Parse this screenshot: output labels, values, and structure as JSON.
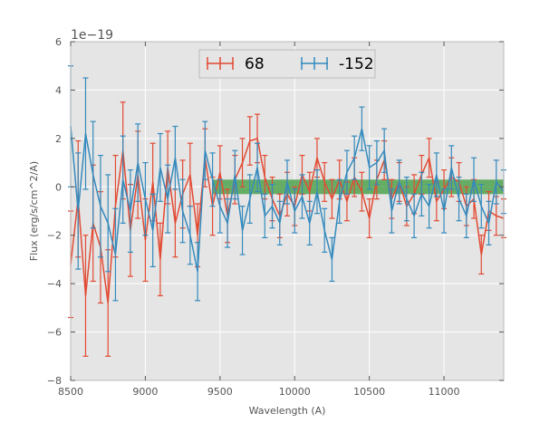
{
  "chart_data": {
    "type": "line",
    "xlabel": "Wavelength (A)",
    "ylabel": "Flux (erg/s/cm^2/A)",
    "offset_label": "1e−19",
    "xlim": [
      8500,
      11400
    ],
    "ylim": [
      -8,
      6
    ],
    "y_scale_factor": "1e-19",
    "x_ticks": [
      8500,
      9000,
      9500,
      10000,
      10500,
      11000
    ],
    "y_ticks": [
      -8,
      -6,
      -4,
      -2,
      0,
      2,
      4,
      6
    ],
    "x_tick_labels": [
      "8500",
      "9000",
      "9500",
      "10000",
      "10500",
      "11000"
    ],
    "y_tick_labels": [
      "−8",
      "−6",
      "−4",
      "−2",
      "0",
      "2",
      "4",
      "6"
    ],
    "grid": true,
    "legend_placement": "top-center",
    "colors": {
      "s68": "#e24a33",
      "s152": "#348abd",
      "band": "#3a9a3a",
      "plot_bg": "#e5e5e5"
    },
    "band": {
      "x0": 9450,
      "x1": 11400,
      "y0": -0.3,
      "y1": 0.3
    },
    "series": [
      {
        "name": "68",
        "x": [
          8500,
          8550,
          8600,
          8650,
          8700,
          8750,
          8800,
          8850,
          8900,
          8950,
          9000,
          9050,
          9100,
          9150,
          9200,
          9250,
          9300,
          9350,
          9400,
          9450,
          9500,
          9550,
          9600,
          9650,
          9700,
          9750,
          9800,
          9850,
          9900,
          9950,
          10000,
          10050,
          10100,
          10150,
          10200,
          10250,
          10300,
          10350,
          10400,
          10450,
          10500,
          10550,
          10600,
          10650,
          10700,
          10750,
          10800,
          10850,
          10900,
          10950,
          11000,
          11050,
          11100,
          11150,
          11200,
          11250,
          11300,
          11350,
          11400
        ],
        "y": [
          -3.2,
          -0.5,
          -4.5,
          -1.5,
          -2.5,
          -4.8,
          -0.8,
          1.5,
          -1.8,
          0.5,
          -2.2,
          0.2,
          -3.0,
          0.8,
          -1.5,
          -0.3,
          0.5,
          -2.0,
          1.2,
          -0.8,
          0.6,
          -1.2,
          0.3,
          1.0,
          1.9,
          2.0,
          0.4,
          -0.5,
          -1.2,
          -0.3,
          -0.8,
          0.5,
          -0.2,
          1.2,
          0.2,
          -0.5,
          0.3,
          -0.6,
          0.4,
          -0.2,
          -1.3,
          0.3,
          1.1,
          -0.5,
          0.2,
          -0.8,
          -0.3,
          0.5,
          1.2,
          -0.6,
          -0.1,
          0.4,
          0.2,
          -0.8,
          -0.5,
          -2.8,
          -1.0,
          -1.2,
          -1.3
        ],
        "yerr": [
          2.2,
          2.4,
          2.5,
          2.4,
          2.3,
          2.2,
          2.1,
          2.0,
          1.9,
          1.8,
          1.7,
          1.6,
          1.5,
          1.5,
          1.4,
          1.4,
          1.3,
          1.3,
          1.2,
          1.2,
          1.1,
          1.1,
          1.0,
          1.0,
          1.0,
          1.0,
          0.9,
          0.9,
          0.9,
          0.9,
          0.8,
          0.8,
          0.8,
          0.8,
          0.8,
          0.8,
          0.8,
          0.8,
          0.8,
          0.8,
          0.8,
          0.8,
          0.8,
          0.8,
          0.8,
          0.8,
          0.8,
          0.8,
          0.8,
          0.8,
          0.8,
          0.8,
          0.8,
          0.8,
          0.8,
          0.8,
          0.8,
          0.8,
          0.8
        ]
      },
      {
        "name": "-152",
        "x": [
          8500,
          8550,
          8600,
          8650,
          8700,
          8750,
          8800,
          8850,
          8900,
          8950,
          9000,
          9050,
          9100,
          9150,
          9200,
          9250,
          9300,
          9350,
          9400,
          9450,
          9500,
          9550,
          9600,
          9650,
          9700,
          9750,
          9800,
          9850,
          9900,
          9950,
          10000,
          10050,
          10100,
          10150,
          10200,
          10250,
          10300,
          10350,
          10400,
          10450,
          10500,
          10550,
          10600,
          10650,
          10700,
          10750,
          10800,
          10850,
          10900,
          10950,
          11000,
          11050,
          11100,
          11150,
          11200,
          11250,
          11300,
          11350,
          11400
        ],
        "y": [
          2.5,
          -1.0,
          2.2,
          0.5,
          -0.8,
          -1.5,
          -2.8,
          0.3,
          -1.0,
          1.0,
          -0.5,
          -1.8,
          0.8,
          -0.5,
          1.2,
          -1.0,
          -2.0,
          -3.5,
          1.5,
          0.3,
          -0.8,
          -1.5,
          0.5,
          -1.8,
          -0.5,
          0.8,
          -1.2,
          -0.8,
          -1.5,
          0.2,
          -1.0,
          -0.4,
          -1.5,
          -0.2,
          -1.8,
          -3.0,
          -0.6,
          0.6,
          1.2,
          2.4,
          0.8,
          1.0,
          1.5,
          -1.0,
          0.2,
          -0.5,
          -1.2,
          -0.3,
          -0.8,
          0.5,
          -1.0,
          0.8,
          -0.5,
          -1.2,
          0.3,
          -0.8,
          -1.5,
          0.2,
          -0.2
        ],
        "yerr": [
          2.5,
          2.4,
          2.3,
          2.2,
          2.1,
          2.0,
          1.9,
          1.8,
          1.7,
          1.6,
          1.5,
          1.5,
          1.4,
          1.4,
          1.3,
          1.3,
          1.2,
          1.2,
          1.2,
          1.1,
          1.1,
          1.0,
          1.0,
          1.0,
          1.0,
          1.0,
          0.9,
          0.9,
          0.9,
          0.9,
          0.9,
          0.9,
          0.9,
          0.9,
          0.9,
          0.9,
          0.9,
          0.9,
          0.9,
          0.9,
          0.9,
          0.9,
          0.9,
          0.9,
          0.9,
          0.9,
          0.9,
          0.9,
          0.9,
          0.9,
          0.9,
          0.9,
          0.9,
          0.9,
          0.9,
          0.9,
          0.9,
          0.9,
          0.9
        ]
      }
    ]
  }
}
